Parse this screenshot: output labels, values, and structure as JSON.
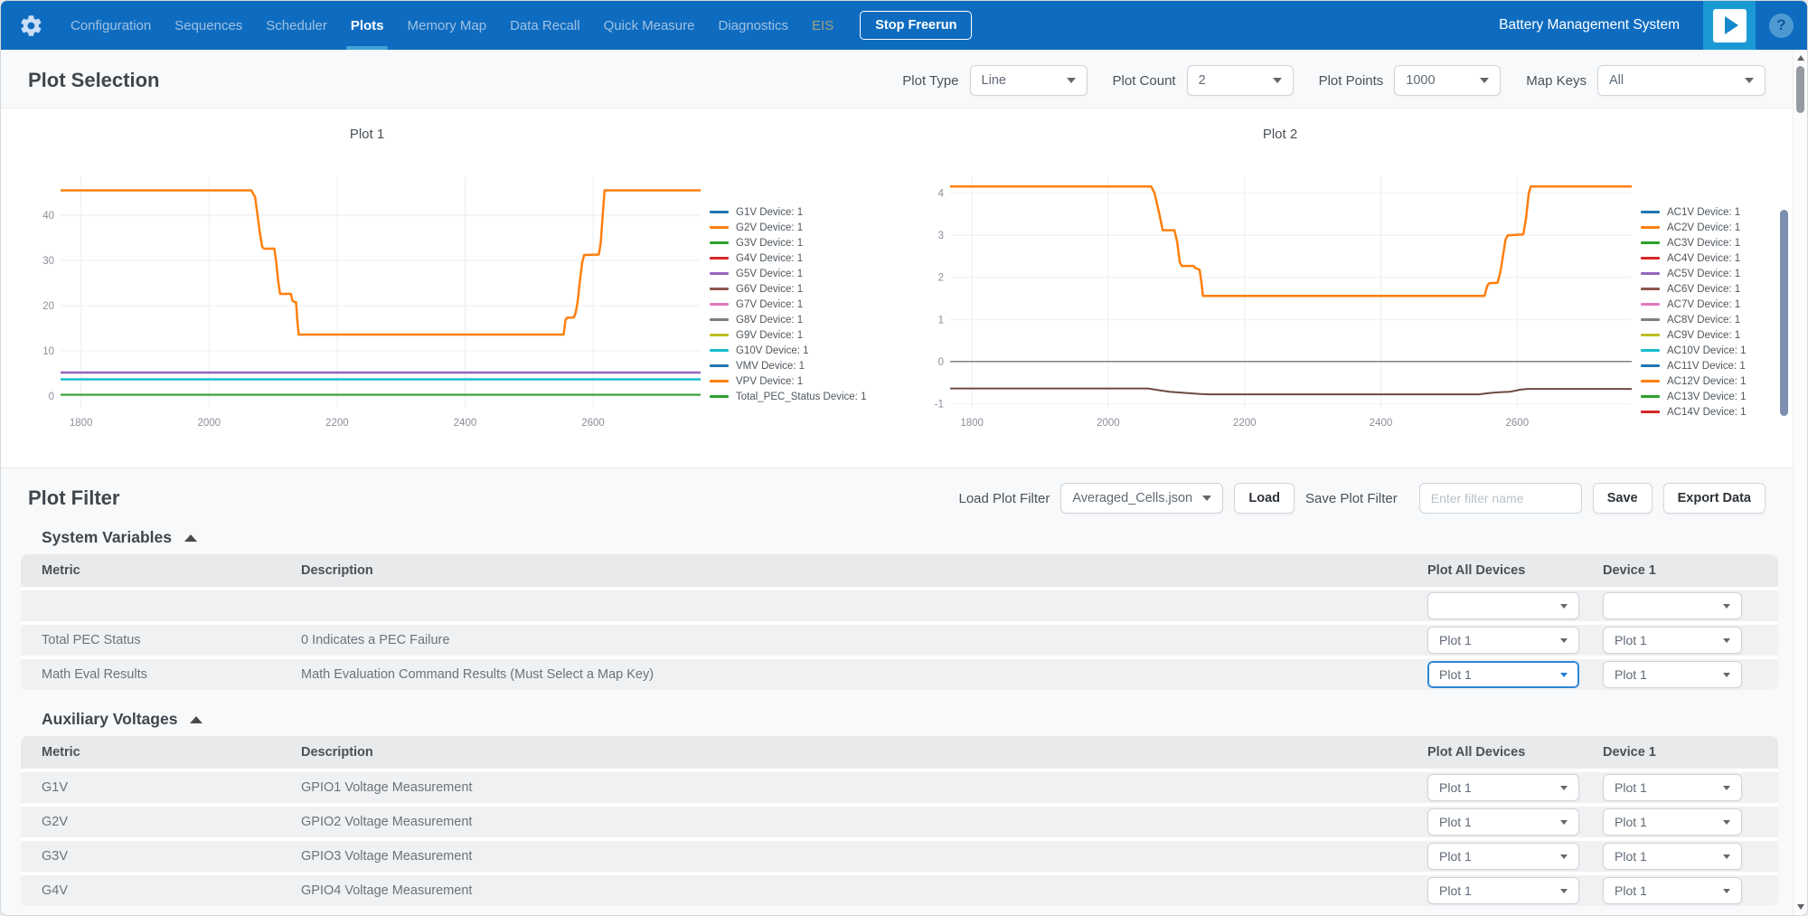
{
  "colors": {
    "navbar": "#0e6cc0",
    "accent_underline": "#3fa3d6",
    "focus_border": "#2e85d8",
    "play_block": "#1b99d4"
  },
  "icons": [
    "gear-icon",
    "play-icon",
    "help-icon",
    "chevron-down-icon",
    "collapse-up-icon"
  ],
  "navbar": {
    "brand": "Battery Management System",
    "stop_button": "Stop Freerun",
    "items": [
      {
        "label": "Configuration",
        "name": "nav-item-configuration"
      },
      {
        "label": "Sequences",
        "name": "nav-item-sequences"
      },
      {
        "label": "Scheduler",
        "name": "nav-item-scheduler"
      },
      {
        "label": "Plots",
        "name": "nav-item-plots",
        "active": true
      },
      {
        "label": "Memory Map",
        "name": "nav-item-memory-map"
      },
      {
        "label": "Data Recall",
        "name": "nav-item-data-recall"
      },
      {
        "label": "Quick Measure",
        "name": "nav-item-quick-measure"
      },
      {
        "label": "Diagnostics",
        "name": "nav-item-diagnostics"
      },
      {
        "label": "EIS",
        "name": "nav-item-eis",
        "disabled": true
      }
    ]
  },
  "plot_selection": {
    "title": "Plot Selection",
    "controls": [
      {
        "label": "Plot Type",
        "value": "Line",
        "name": "plot-type-select"
      },
      {
        "label": "Plot Count",
        "value": "2",
        "name": "plot-count-select"
      },
      {
        "label": "Plot Points",
        "value": "1000",
        "name": "plot-points-select"
      },
      {
        "label": "Map Keys",
        "value": "All",
        "name": "map-keys-select"
      }
    ]
  },
  "chart_data": [
    {
      "type": "line",
      "title": "Plot 1",
      "xlabel": "",
      "ylabel": "",
      "xlim": [
        1768,
        2768
      ],
      "ylim": [
        -2.6,
        48.6
      ],
      "xticks": [
        1800,
        2000,
        2200,
        2400,
        2600
      ],
      "yticks": [
        0,
        10,
        20,
        30,
        40
      ],
      "grid": true,
      "legend_position": "right",
      "series": [
        {
          "name": "VPV Device: 1",
          "color": "#ff7f0e",
          "width": 2.5,
          "points": [
            [
              1768,
              45.5
            ],
            [
              2066,
              45.5
            ],
            [
              2072,
              44
            ],
            [
              2079,
              36.5
            ],
            [
              2083,
              33
            ],
            [
              2086,
              32.6
            ],
            [
              2102,
              32.6
            ],
            [
              2105,
              29.5
            ],
            [
              2108,
              25.5
            ],
            [
              2111,
              22.6
            ],
            [
              2128,
              22.6
            ],
            [
              2130,
              21.2
            ],
            [
              2133,
              20.8
            ],
            [
              2136,
              20.8
            ],
            [
              2138,
              16.5
            ],
            [
              2140,
              13.6
            ],
            [
              2554,
              13.6
            ],
            [
              2557,
              16.8
            ],
            [
              2559,
              17.3
            ],
            [
              2570,
              17.4
            ],
            [
              2573,
              18.5
            ],
            [
              2576,
              21
            ],
            [
              2579,
              25
            ],
            [
              2583,
              29.5
            ],
            [
              2586,
              31.2
            ],
            [
              2609,
              31.3
            ],
            [
              2612,
              34
            ],
            [
              2615,
              40
            ],
            [
              2618,
              45.5
            ],
            [
              2768,
              45.5
            ]
          ]
        },
        {
          "name": "G5V Device: 1",
          "color": "#9467bd",
          "width": 2.5,
          "points": [
            [
              1768,
              5.2
            ],
            [
              2768,
              5.2
            ]
          ]
        },
        {
          "name": "G10V Device: 1",
          "color": "#17becf",
          "width": 2.5,
          "points": [
            [
              1768,
              3.7
            ],
            [
              2768,
              3.7
            ]
          ]
        },
        {
          "name": "Total_PEC_Status Device: 1",
          "color": "#2ca02c",
          "width": 2,
          "points": [
            [
              1768,
              0.3
            ],
            [
              2768,
              0.3
            ]
          ]
        }
      ],
      "legend": [
        {
          "label": "G1V Device: 1",
          "color": "#1f77b4"
        },
        {
          "label": "G2V Device: 1",
          "color": "#ff7f0e"
        },
        {
          "label": "G3V Device: 1",
          "color": "#2ca02c"
        },
        {
          "label": "G4V Device: 1",
          "color": "#d62728"
        },
        {
          "label": "G5V Device: 1",
          "color": "#9467bd"
        },
        {
          "label": "G6V Device: 1",
          "color": "#8c564b"
        },
        {
          "label": "G7V Device: 1",
          "color": "#e377c2"
        },
        {
          "label": "G8V Device: 1",
          "color": "#7f7f7f"
        },
        {
          "label": "G9V Device: 1",
          "color": "#bcbd22"
        },
        {
          "label": "G10V Device: 1",
          "color": "#17becf"
        },
        {
          "label": "VMV Device: 1",
          "color": "#1f77b4"
        },
        {
          "label": "VPV Device: 1",
          "color": "#ff7f0e"
        },
        {
          "label": "Total_PEC_Status Device: 1",
          "color": "#2ca02c"
        }
      ]
    },
    {
      "type": "line",
      "title": "Plot 2",
      "xlabel": "",
      "ylabel": "",
      "xlim": [
        1768,
        2768
      ],
      "ylim": [
        -1.1,
        4.4
      ],
      "xticks": [
        1800,
        2000,
        2200,
        2400,
        2600
      ],
      "yticks": [
        -1,
        0,
        1,
        2,
        3,
        4
      ],
      "grid": true,
      "legend_position": "right",
      "series": [
        {
          "name": "AC2V Device: 1",
          "color": "#ff7f0e",
          "width": 2.5,
          "points": [
            [
              1768,
              4.16
            ],
            [
              2063,
              4.16
            ],
            [
              2068,
              4.0
            ],
            [
              2075,
              3.5
            ],
            [
              2080,
              3.12
            ],
            [
              2097,
              3.12
            ],
            [
              2101,
              2.85
            ],
            [
              2105,
              2.35
            ],
            [
              2108,
              2.27
            ],
            [
              2125,
              2.27
            ],
            [
              2128,
              2.22
            ],
            [
              2134,
              2.18
            ],
            [
              2137,
              1.85
            ],
            [
              2139,
              1.56
            ],
            [
              2552,
              1.56
            ],
            [
              2556,
              1.8
            ],
            [
              2559,
              1.86
            ],
            [
              2571,
              1.87
            ],
            [
              2575,
              2.1
            ],
            [
              2579,
              2.5
            ],
            [
              2583,
              2.9
            ],
            [
              2586,
              3.0
            ],
            [
              2609,
              3.02
            ],
            [
              2613,
              3.4
            ],
            [
              2617,
              4.0
            ],
            [
              2620,
              4.16
            ],
            [
              2768,
              4.16
            ]
          ]
        },
        {
          "name": "AC8V Device: 1",
          "color": "#808080",
          "width": 1.5,
          "points": [
            [
              1768,
              0
            ],
            [
              2768,
              0
            ]
          ]
        },
        {
          "name": "AC6V Device: 1",
          "color": "#6d4a43",
          "width": 2,
          "points": [
            [
              1768,
              -0.64
            ],
            [
              2058,
              -0.64
            ],
            [
              2074,
              -0.68
            ],
            [
              2090,
              -0.72
            ],
            [
              2108,
              -0.74
            ],
            [
              2133,
              -0.77
            ],
            [
              2148,
              -0.78
            ],
            [
              2544,
              -0.78
            ],
            [
              2558,
              -0.75
            ],
            [
              2574,
              -0.73
            ],
            [
              2589,
              -0.72
            ],
            [
              2604,
              -0.67
            ],
            [
              2614,
              -0.65
            ],
            [
              2768,
              -0.65
            ]
          ]
        }
      ],
      "legend": [
        {
          "label": "AC1V Device: 1",
          "color": "#1f77b4"
        },
        {
          "label": "AC2V Device: 1",
          "color": "#ff7f0e"
        },
        {
          "label": "AC3V Device: 1",
          "color": "#2ca02c"
        },
        {
          "label": "AC4V Device: 1",
          "color": "#d62728"
        },
        {
          "label": "AC5V Device: 1",
          "color": "#9467bd"
        },
        {
          "label": "AC6V Device: 1",
          "color": "#8c564b"
        },
        {
          "label": "AC7V Device: 1",
          "color": "#e377c2"
        },
        {
          "label": "AC8V Device: 1",
          "color": "#7f7f7f"
        },
        {
          "label": "AC9V Device: 1",
          "color": "#bcbd22"
        },
        {
          "label": "AC10V Device: 1",
          "color": "#17becf"
        },
        {
          "label": "AC11V Device: 1",
          "color": "#1f77b4"
        },
        {
          "label": "AC12V Device: 1",
          "color": "#ff7f0e"
        },
        {
          "label": "AC13V Device: 1",
          "color": "#2ca02c"
        },
        {
          "label": "AC14V Device: 1",
          "color": "#d62728"
        }
      ]
    }
  ],
  "plot_filter": {
    "title": "Plot Filter",
    "load_label": "Load Plot Filter",
    "load_value": "Averaged_Cells.json",
    "load_button": "Load",
    "save_label": "Save Plot Filter",
    "save_placeholder": "Enter filter name",
    "save_button": "Save",
    "export_button": "Export Data",
    "sections": [
      {
        "title": "System Variables",
        "columns": [
          "Metric",
          "Description",
          "Plot All Devices",
          "Device 1"
        ],
        "rows": [
          {
            "metric": "",
            "description": "",
            "plot_all": "",
            "device1": ""
          },
          {
            "metric": "Total PEC Status",
            "description": "0 Indicates a PEC Failure",
            "plot_all": "Plot 1",
            "device1": "Plot 1"
          },
          {
            "metric": "Math Eval Results",
            "description": "Math Evaluation Command Results (Must Select a Map Key)",
            "plot_all": "Plot 1",
            "device1": "Plot 1",
            "focused": "plot-all-select"
          }
        ]
      },
      {
        "title": "Auxiliary Voltages",
        "columns": [
          "Metric",
          "Description",
          "Plot All Devices",
          "Device 1"
        ],
        "rows": [
          {
            "metric": "G1V",
            "description": "GPIO1 Voltage Measurement",
            "plot_all": "Plot 1",
            "device1": "Plot 1"
          },
          {
            "metric": "G2V",
            "description": "GPIO2 Voltage Measurement",
            "plot_all": "Plot 1",
            "device1": "Plot 1"
          },
          {
            "metric": "G3V",
            "description": "GPIO3 Voltage Measurement",
            "plot_all": "Plot 1",
            "device1": "Plot 1"
          },
          {
            "metric": "G4V",
            "description": "GPIO4 Voltage Measurement",
            "plot_all": "Plot 1",
            "device1": "Plot 1"
          }
        ]
      }
    ]
  }
}
